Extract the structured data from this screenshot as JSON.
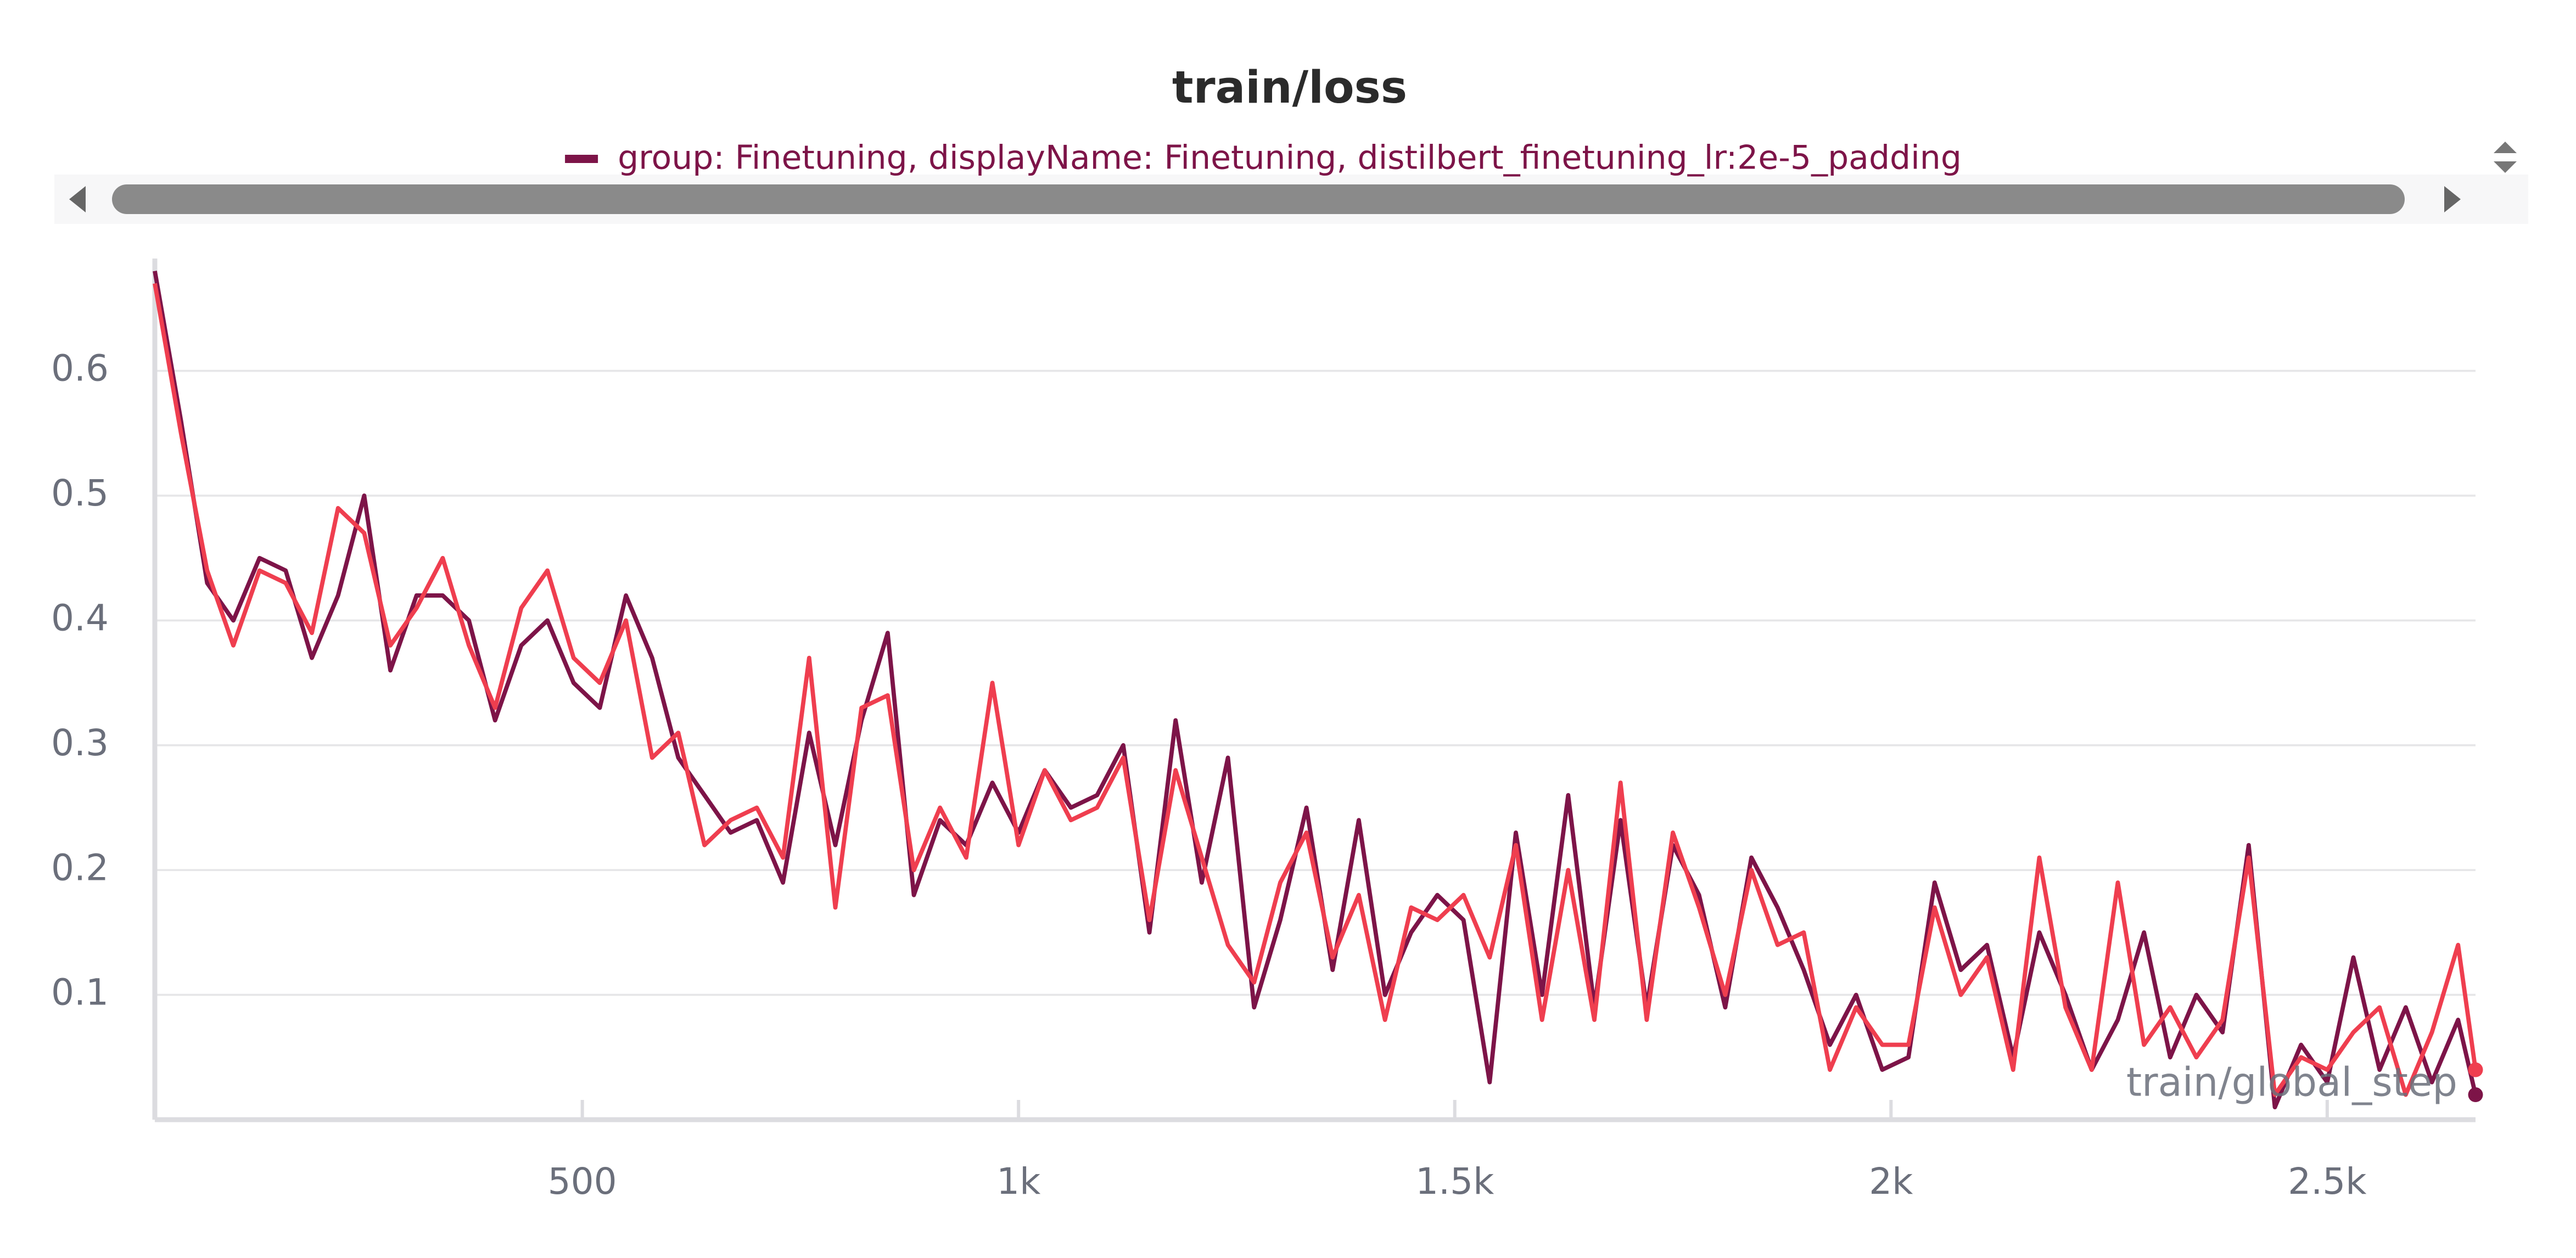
{
  "chart_data": {
    "type": "line",
    "title": "train/loss",
    "x_label": "train/global_step",
    "x": [
      10,
      40,
      70,
      100,
      130,
      160,
      190,
      220,
      250,
      280,
      310,
      340,
      370,
      400,
      430,
      460,
      490,
      520,
      550,
      580,
      610,
      640,
      670,
      700,
      730,
      760,
      790,
      820,
      850,
      880,
      910,
      940,
      970,
      1000,
      1030,
      1060,
      1090,
      1120,
      1150,
      1180,
      1210,
      1240,
      1270,
      1300,
      1330,
      1360,
      1390,
      1420,
      1450,
      1480,
      1510,
      1540,
      1570,
      1600,
      1630,
      1660,
      1690,
      1720,
      1750,
      1780,
      1810,
      1840,
      1870,
      1900,
      1930,
      1960,
      1990,
      2020,
      2050,
      2080,
      2110,
      2140,
      2170,
      2200,
      2230,
      2260,
      2290,
      2320,
      2350,
      2380,
      2410,
      2440,
      2470,
      2500,
      2530,
      2560,
      2590,
      2620,
      2650,
      2670
    ],
    "series": [
      {
        "name": "group: Finetuning, displayName: Finetuning, distilbert_finetuning_lr:2e-5_padding",
        "color": "#7d1448",
        "values": [
          0.68,
          0.56,
          0.43,
          0.4,
          0.45,
          0.44,
          0.37,
          0.42,
          0.5,
          0.36,
          0.42,
          0.42,
          0.4,
          0.32,
          0.38,
          0.4,
          0.35,
          0.33,
          0.42,
          0.37,
          0.29,
          0.26,
          0.23,
          0.24,
          0.19,
          0.31,
          0.22,
          0.32,
          0.39,
          0.18,
          0.24,
          0.22,
          0.27,
          0.23,
          0.28,
          0.25,
          0.26,
          0.3,
          0.15,
          0.32,
          0.19,
          0.29,
          0.09,
          0.16,
          0.25,
          0.12,
          0.24,
          0.1,
          0.15,
          0.18,
          0.16,
          0.03,
          0.23,
          0.1,
          0.26,
          0.09,
          0.24,
          0.09,
          0.22,
          0.18,
          0.09,
          0.21,
          0.17,
          0.12,
          0.06,
          0.1,
          0.04,
          0.05,
          0.19,
          0.12,
          0.14,
          0.05,
          0.15,
          0.1,
          0.04,
          0.08,
          0.15,
          0.05,
          0.1,
          0.07,
          0.22,
          0.01,
          0.06,
          0.03,
          0.13,
          0.04,
          0.09,
          0.03,
          0.08,
          0.02
        ]
      },
      {
        "color": "#ef3e4f",
        "values": [
          0.67,
          0.55,
          0.44,
          0.38,
          0.44,
          0.43,
          0.39,
          0.49,
          0.47,
          0.38,
          0.41,
          0.45,
          0.38,
          0.33,
          0.41,
          0.44,
          0.37,
          0.35,
          0.4,
          0.29,
          0.31,
          0.22,
          0.24,
          0.25,
          0.21,
          0.37,
          0.17,
          0.33,
          0.34,
          0.2,
          0.25,
          0.21,
          0.35,
          0.22,
          0.28,
          0.24,
          0.25,
          0.29,
          0.16,
          0.28,
          0.21,
          0.14,
          0.11,
          0.19,
          0.23,
          0.13,
          0.18,
          0.08,
          0.17,
          0.16,
          0.18,
          0.13,
          0.22,
          0.08,
          0.2,
          0.08,
          0.27,
          0.08,
          0.23,
          0.17,
          0.1,
          0.2,
          0.14,
          0.15,
          0.04,
          0.09,
          0.06,
          0.06,
          0.17,
          0.1,
          0.13,
          0.04,
          0.21,
          0.09,
          0.04,
          0.19,
          0.06,
          0.09,
          0.05,
          0.08,
          0.21,
          0.02,
          0.05,
          0.04,
          0.07,
          0.09,
          0.02,
          0.07,
          0.14,
          0.04
        ]
      }
    ],
    "xlim": [
      10,
      2670
    ],
    "ylim": [
      0,
      0.69
    ],
    "xticks": [
      500,
      {
        "value": 1000,
        "label": "1k"
      },
      {
        "value": 1500,
        "label": "1.5k"
      },
      {
        "value": 2000,
        "label": "2k"
      },
      {
        "value": 2500,
        "label": "2.5k"
      }
    ],
    "yticks": [
      0.1,
      0.2,
      0.3,
      0.4,
      0.5,
      0.6
    ],
    "grid": true
  }
}
